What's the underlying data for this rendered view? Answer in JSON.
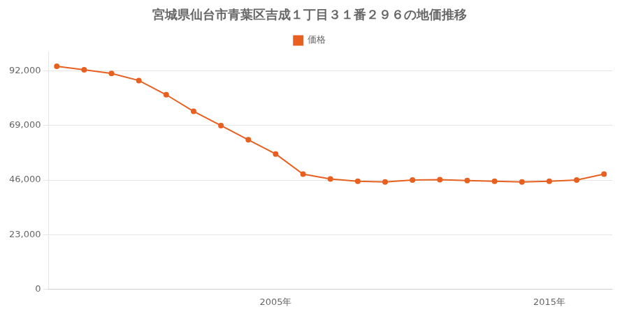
{
  "chart_data": {
    "type": "line",
    "title": "宮城県仙台市青葉区吉成１丁目３１番２９６の地価推移",
    "x": [
      1997,
      1998,
      1999,
      2000,
      2001,
      2002,
      2003,
      2004,
      2005,
      2006,
      2007,
      2008,
      2009,
      2010,
      2011,
      2012,
      2013,
      2014,
      2015,
      2016,
      2017
    ],
    "series": [
      {
        "name": "価格",
        "color": "#e86020",
        "values": [
          94000,
          92500,
          91000,
          88000,
          82000,
          75000,
          69000,
          63000,
          57000,
          48500,
          46500,
          45500,
          45200,
          46000,
          46200,
          45800,
          45500,
          45200,
          45500,
          46000,
          48500
        ]
      }
    ],
    "xlim": [
      1996.7,
      2017.3
    ],
    "xticks": [
      {
        "value": 2005,
        "label": "2005年"
      },
      {
        "value": 2015,
        "label": "2015年"
      }
    ],
    "ylim": [
      0,
      100000
    ],
    "yticks": [
      0,
      {
        "value": 23000,
        "label": "23,000"
      },
      {
        "value": 46000,
        "label": "46,000"
      },
      {
        "value": 69000,
        "label": "69,000"
      },
      {
        "value": 92000,
        "label": "92,000"
      }
    ],
    "grid": "y",
    "legend": "top",
    "marker": "circle"
  }
}
